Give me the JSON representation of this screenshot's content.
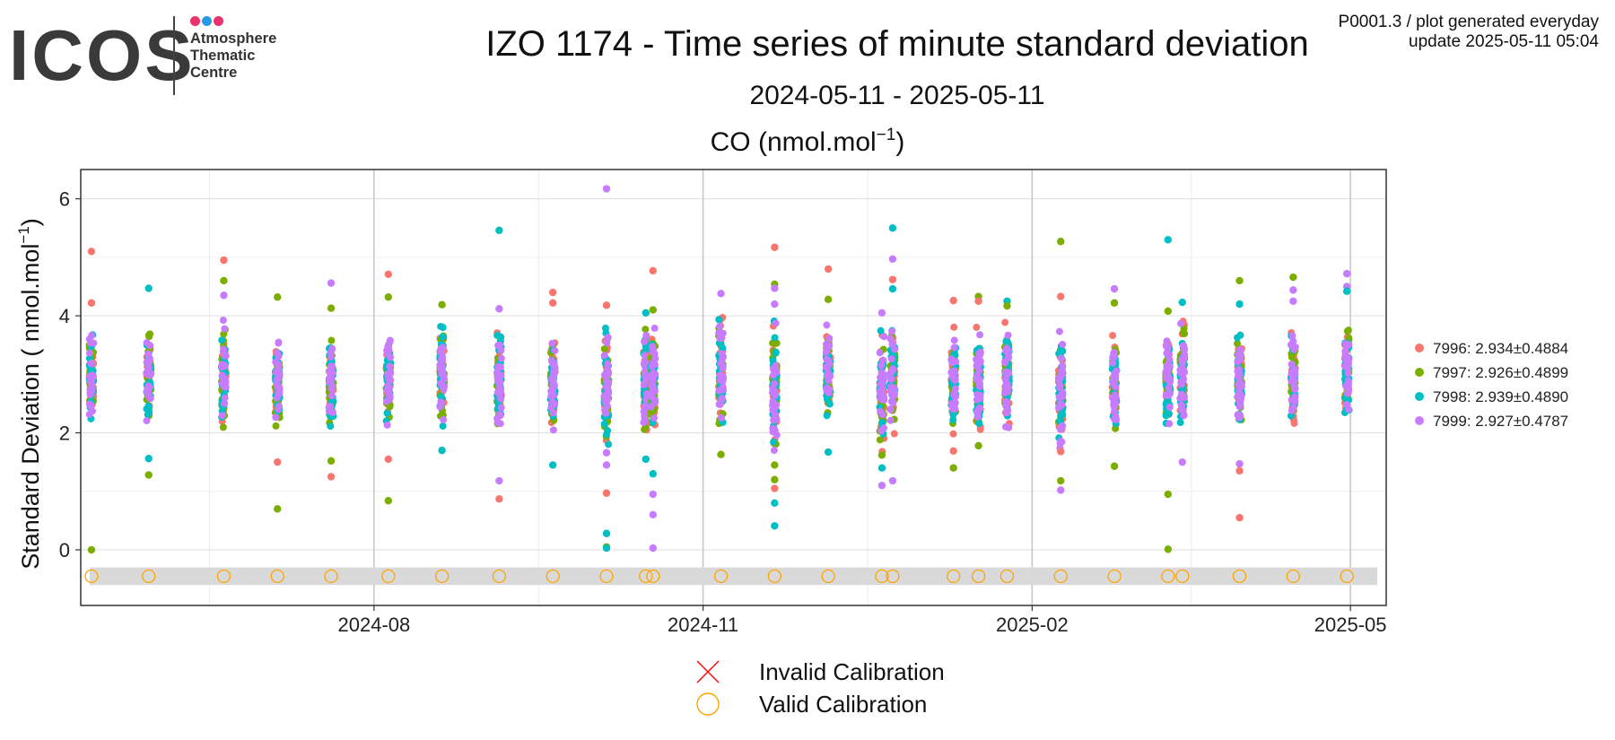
{
  "logo": {
    "wordmark": "ICOS",
    "lines": [
      "Atmosphere",
      "Thematic",
      "Centre"
    ],
    "dot_colors": [
      "#e8336c",
      "#2b9ae0",
      "#e8336c"
    ]
  },
  "header": {
    "title": "IZO 1174 - Time series of minute standard deviation",
    "subtitle": "2024-05-11 - 2025-05-11",
    "note_line1": "P0001.3 / plot generated everyday",
    "note_line2": "update  2025-05-11 05:04"
  },
  "chart_data": {
    "type": "scatter",
    "panel_title": "CO (nmol.mol",
    "panel_title_sup": "−1",
    "panel_title_end": ")",
    "ylabel": "Standard Deviation ( nmol.mol",
    "ylabel_sup": "−1",
    "ylabel_end": ")",
    "xlim": [
      "2024-05-11",
      "2025-05-11"
    ],
    "ylim": [
      -0.95,
      6.5
    ],
    "x_ticks": [
      {
        "date": "2024-08-01",
        "label": "2024-08"
      },
      {
        "date": "2024-11-01",
        "label": "2024-11"
      },
      {
        "date": "2025-02-01",
        "label": "2025-02"
      },
      {
        "date": "2025-05-01",
        "label": "2025-05"
      }
    ],
    "y_ticks": [
      0,
      2,
      4,
      6
    ],
    "grid": true,
    "legend_position": "right",
    "calibration_band_y": [
      -0.6,
      -0.3
    ],
    "series": [
      {
        "name": "7996: 2.934±0.4884",
        "color": "#F8766D"
      },
      {
        "name": "7997: 2.926±0.4899",
        "color": "#7CAE00"
      },
      {
        "name": "7998: 2.939±0.4890",
        "color": "#00BFC4"
      },
      {
        "name": "7999: 2.927±0.4787",
        "color": "#C77CFF"
      }
    ],
    "measurement_clusters": [
      {
        "date": "2024-05-14",
        "min": 2.0,
        "max": 3.9
      },
      {
        "date": "2024-05-30",
        "min": 1.9,
        "max": 3.9
      },
      {
        "date": "2024-06-20",
        "min": 1.9,
        "max": 4.1
      },
      {
        "date": "2024-07-05",
        "min": 1.7,
        "max": 3.9
      },
      {
        "date": "2024-07-20",
        "min": 1.9,
        "max": 3.9
      },
      {
        "date": "2024-08-05",
        "min": 1.9,
        "max": 4.0
      },
      {
        "date": "2024-08-20",
        "min": 1.9,
        "max": 4.0
      },
      {
        "date": "2024-09-05",
        "min": 1.9,
        "max": 3.9
      },
      {
        "date": "2024-09-20",
        "min": 1.9,
        "max": 3.8
      },
      {
        "date": "2024-10-05",
        "min": 1.5,
        "max": 4.0
      },
      {
        "date": "2024-10-16",
        "min": 1.8,
        "max": 4.0
      },
      {
        "date": "2024-10-18",
        "min": 1.8,
        "max": 4.0
      },
      {
        "date": "2024-11-06",
        "min": 1.9,
        "max": 4.2
      },
      {
        "date": "2024-11-21",
        "min": 1.5,
        "max": 4.2
      },
      {
        "date": "2024-12-06",
        "min": 2.0,
        "max": 4.0
      },
      {
        "date": "2024-12-21",
        "min": 1.4,
        "max": 4.0
      },
      {
        "date": "2024-12-24",
        "min": 1.9,
        "max": 4.0
      },
      {
        "date": "2025-01-10",
        "min": 1.8,
        "max": 3.9
      },
      {
        "date": "2025-01-17",
        "min": 1.8,
        "max": 4.0
      },
      {
        "date": "2025-01-25",
        "min": 1.9,
        "max": 4.0
      },
      {
        "date": "2025-02-09",
        "min": 1.4,
        "max": 4.0
      },
      {
        "date": "2025-02-24",
        "min": 1.8,
        "max": 3.9
      },
      {
        "date": "2025-03-11",
        "min": 1.9,
        "max": 4.0
      },
      {
        "date": "2025-03-15",
        "min": 1.9,
        "max": 4.1
      },
      {
        "date": "2025-03-31",
        "min": 1.8,
        "max": 4.0
      },
      {
        "date": "2025-04-15",
        "min": 1.9,
        "max": 4.0
      },
      {
        "date": "2025-04-30",
        "min": 1.9,
        "max": 4.2
      }
    ],
    "outliers": [
      {
        "date": "2024-05-14",
        "y": 5.1,
        "s": 0
      },
      {
        "date": "2024-05-14",
        "y": 4.22,
        "s": 0
      },
      {
        "date": "2024-05-14",
        "y": 0.0,
        "s": 1
      },
      {
        "date": "2024-05-30",
        "y": 4.47,
        "s": 2
      },
      {
        "date": "2024-05-30",
        "y": 1.28,
        "s": 1
      },
      {
        "date": "2024-05-30",
        "y": 1.56,
        "s": 2
      },
      {
        "date": "2024-06-20",
        "y": 4.95,
        "s": 0
      },
      {
        "date": "2024-06-20",
        "y": 4.6,
        "s": 1
      },
      {
        "date": "2024-06-20",
        "y": 4.35,
        "s": 3
      },
      {
        "date": "2024-07-05",
        "y": 4.32,
        "s": 1
      },
      {
        "date": "2024-07-05",
        "y": 0.7,
        "s": 1
      },
      {
        "date": "2024-07-05",
        "y": 1.5,
        "s": 0
      },
      {
        "date": "2024-07-20",
        "y": 4.56,
        "s": 3
      },
      {
        "date": "2024-07-20",
        "y": 4.13,
        "s": 1
      },
      {
        "date": "2024-07-20",
        "y": 1.25,
        "s": 0
      },
      {
        "date": "2024-07-20",
        "y": 1.52,
        "s": 1
      },
      {
        "date": "2024-08-05",
        "y": 4.71,
        "s": 0
      },
      {
        "date": "2024-08-05",
        "y": 4.32,
        "s": 1
      },
      {
        "date": "2024-08-05",
        "y": 0.84,
        "s": 1
      },
      {
        "date": "2024-08-05",
        "y": 1.55,
        "s": 0
      },
      {
        "date": "2024-08-20",
        "y": 4.19,
        "s": 1
      },
      {
        "date": "2024-08-20",
        "y": 1.7,
        "s": 2
      },
      {
        "date": "2024-09-05",
        "y": 5.46,
        "s": 2
      },
      {
        "date": "2024-09-05",
        "y": 4.12,
        "s": 3
      },
      {
        "date": "2024-09-05",
        "y": 1.18,
        "s": 3
      },
      {
        "date": "2024-09-05",
        "y": 0.87,
        "s": 0
      },
      {
        "date": "2024-09-20",
        "y": 4.4,
        "s": 0
      },
      {
        "date": "2024-09-20",
        "y": 4.22,
        "s": 0
      },
      {
        "date": "2024-09-20",
        "y": 1.45,
        "s": 2
      },
      {
        "date": "2024-10-05",
        "y": 6.17,
        "s": 3
      },
      {
        "date": "2024-10-05",
        "y": 4.18,
        "s": 0
      },
      {
        "date": "2024-10-05",
        "y": 1.66,
        "s": 3
      },
      {
        "date": "2024-10-05",
        "y": 1.45,
        "s": 3
      },
      {
        "date": "2024-10-05",
        "y": 0.97,
        "s": 0
      },
      {
        "date": "2024-10-05",
        "y": 0.28,
        "s": 2
      },
      {
        "date": "2024-10-05",
        "y": 0.05,
        "s": 1
      },
      {
        "date": "2024-10-05",
        "y": 0.03,
        "s": 2
      },
      {
        "date": "2024-10-16",
        "y": 4.05,
        "s": 2
      },
      {
        "date": "2024-10-16",
        "y": 1.55,
        "s": 2
      },
      {
        "date": "2024-10-18",
        "y": 4.77,
        "s": 0
      },
      {
        "date": "2024-10-18",
        "y": 4.1,
        "s": 1
      },
      {
        "date": "2024-10-18",
        "y": 1.3,
        "s": 2
      },
      {
        "date": "2024-10-18",
        "y": 0.95,
        "s": 3
      },
      {
        "date": "2024-10-18",
        "y": 0.6,
        "s": 3
      },
      {
        "date": "2024-10-18",
        "y": 0.03,
        "s": 3
      },
      {
        "date": "2024-11-06",
        "y": 4.38,
        "s": 3
      },
      {
        "date": "2024-11-06",
        "y": 1.63,
        "s": 1
      },
      {
        "date": "2024-11-21",
        "y": 5.17,
        "s": 0
      },
      {
        "date": "2024-11-21",
        "y": 4.54,
        "s": 1
      },
      {
        "date": "2024-11-21",
        "y": 4.47,
        "s": 3
      },
      {
        "date": "2024-11-21",
        "y": 4.2,
        "s": 3
      },
      {
        "date": "2024-11-21",
        "y": 1.45,
        "s": 1
      },
      {
        "date": "2024-11-21",
        "y": 1.2,
        "s": 1
      },
      {
        "date": "2024-11-21",
        "y": 1.05,
        "s": 0
      },
      {
        "date": "2024-11-21",
        "y": 0.8,
        "s": 2
      },
      {
        "date": "2024-11-21",
        "y": 0.41,
        "s": 2
      },
      {
        "date": "2024-12-06",
        "y": 4.8,
        "s": 0
      },
      {
        "date": "2024-12-06",
        "y": 4.28,
        "s": 1
      },
      {
        "date": "2024-12-06",
        "y": 1.67,
        "s": 2
      },
      {
        "date": "2024-12-21",
        "y": 4.05,
        "s": 3
      },
      {
        "date": "2024-12-21",
        "y": 1.62,
        "s": 1
      },
      {
        "date": "2024-12-21",
        "y": 1.4,
        "s": 2
      },
      {
        "date": "2024-12-21",
        "y": 1.1,
        "s": 3
      },
      {
        "date": "2024-12-24",
        "y": 5.5,
        "s": 2
      },
      {
        "date": "2024-12-24",
        "y": 4.97,
        "s": 3
      },
      {
        "date": "2024-12-24",
        "y": 4.62,
        "s": 0
      },
      {
        "date": "2024-12-24",
        "y": 4.46,
        "s": 2
      },
      {
        "date": "2024-12-24",
        "y": 1.18,
        "s": 3
      },
      {
        "date": "2025-01-10",
        "y": 4.26,
        "s": 0
      },
      {
        "date": "2025-01-10",
        "y": 1.4,
        "s": 1
      },
      {
        "date": "2025-01-10",
        "y": 1.69,
        "s": 0
      },
      {
        "date": "2025-01-17",
        "y": 4.33,
        "s": 1
      },
      {
        "date": "2025-01-17",
        "y": 4.25,
        "s": 0
      },
      {
        "date": "2025-01-17",
        "y": 1.78,
        "s": 1
      },
      {
        "date": "2025-01-25",
        "y": 4.25,
        "s": 2
      },
      {
        "date": "2025-01-25",
        "y": 4.17,
        "s": 1
      },
      {
        "date": "2025-02-09",
        "y": 5.27,
        "s": 1
      },
      {
        "date": "2025-02-09",
        "y": 4.33,
        "s": 0
      },
      {
        "date": "2025-02-09",
        "y": 1.68,
        "s": 0
      },
      {
        "date": "2025-02-09",
        "y": 1.18,
        "s": 1
      },
      {
        "date": "2025-02-09",
        "y": 1.02,
        "s": 3
      },
      {
        "date": "2025-02-24",
        "y": 4.46,
        "s": 3
      },
      {
        "date": "2025-02-24",
        "y": 4.22,
        "s": 1
      },
      {
        "date": "2025-02-24",
        "y": 1.43,
        "s": 1
      },
      {
        "date": "2025-03-11",
        "y": 5.3,
        "s": 2
      },
      {
        "date": "2025-03-11",
        "y": 4.08,
        "s": 1
      },
      {
        "date": "2025-03-11",
        "y": 0.95,
        "s": 1
      },
      {
        "date": "2025-03-11",
        "y": 0.01,
        "s": 1
      },
      {
        "date": "2025-03-15",
        "y": 4.23,
        "s": 2
      },
      {
        "date": "2025-03-15",
        "y": 1.5,
        "s": 3
      },
      {
        "date": "2025-03-31",
        "y": 4.6,
        "s": 1
      },
      {
        "date": "2025-03-31",
        "y": 4.2,
        "s": 2
      },
      {
        "date": "2025-03-31",
        "y": 1.47,
        "s": 3
      },
      {
        "date": "2025-03-31",
        "y": 1.35,
        "s": 0
      },
      {
        "date": "2025-03-31",
        "y": 0.55,
        "s": 0
      },
      {
        "date": "2025-04-15",
        "y": 4.66,
        "s": 1
      },
      {
        "date": "2025-04-15",
        "y": 4.44,
        "s": 3
      },
      {
        "date": "2025-04-15",
        "y": 4.25,
        "s": 3
      },
      {
        "date": "2025-04-30",
        "y": 4.72,
        "s": 3
      },
      {
        "date": "2025-04-30",
        "y": 4.5,
        "s": 3
      },
      {
        "date": "2025-04-30",
        "y": 4.42,
        "s": 2
      }
    ],
    "calibrations": [
      {
        "date": "2024-05-14",
        "status": "valid"
      },
      {
        "date": "2024-05-30",
        "status": "valid"
      },
      {
        "date": "2024-06-20",
        "status": "valid"
      },
      {
        "date": "2024-07-05",
        "status": "valid"
      },
      {
        "date": "2024-07-20",
        "status": "valid"
      },
      {
        "date": "2024-08-05",
        "status": "valid"
      },
      {
        "date": "2024-08-20",
        "status": "valid"
      },
      {
        "date": "2024-09-05",
        "status": "valid"
      },
      {
        "date": "2024-09-20",
        "status": "valid"
      },
      {
        "date": "2024-10-05",
        "status": "valid"
      },
      {
        "date": "2024-10-16",
        "status": "valid"
      },
      {
        "date": "2024-10-18",
        "status": "valid"
      },
      {
        "date": "2024-11-06",
        "status": "valid"
      },
      {
        "date": "2024-11-21",
        "status": "valid"
      },
      {
        "date": "2024-12-06",
        "status": "valid"
      },
      {
        "date": "2024-12-21",
        "status": "valid"
      },
      {
        "date": "2024-12-24",
        "status": "valid"
      },
      {
        "date": "2025-01-10",
        "status": "valid"
      },
      {
        "date": "2025-01-17",
        "status": "valid"
      },
      {
        "date": "2025-01-25",
        "status": "valid"
      },
      {
        "date": "2025-02-09",
        "status": "valid"
      },
      {
        "date": "2025-02-24",
        "status": "valid"
      },
      {
        "date": "2025-03-11",
        "status": "valid"
      },
      {
        "date": "2025-03-15",
        "status": "valid"
      },
      {
        "date": "2025-03-31",
        "status": "valid"
      },
      {
        "date": "2025-04-15",
        "status": "valid"
      },
      {
        "date": "2025-04-30",
        "status": "valid"
      }
    ],
    "calibration_legend": [
      {
        "label": "Invalid Calibration",
        "symbol": "cross",
        "color": "#ff0000"
      },
      {
        "label": "Valid Calibration",
        "symbol": "circle",
        "color": "#ffa500"
      }
    ]
  }
}
